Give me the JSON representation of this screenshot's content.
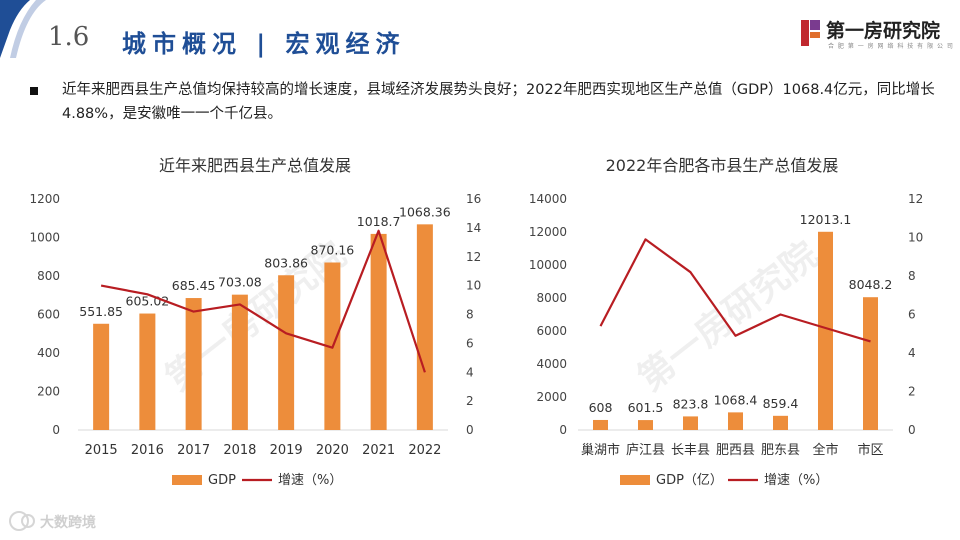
{
  "header": {
    "section_number": "1.6",
    "section_title": "城市概况 | 宏观经济",
    "brand_name": "第一房研究院",
    "brand_sub": "合 肥 第 一 房 网 络 科 技 有 限 公 司"
  },
  "intro": {
    "text": "近年来肥西县生产总值均保持较高的增长速度，县域经济发展势头良好；2022年肥西实现地区生产总值（GDP）1068.4亿元，同比增长4.88%，是安徽唯一一个千亿县。"
  },
  "watermark": {
    "chart_text": "第一房研究院",
    "bottom_text": "大数跨境"
  },
  "colors": {
    "bar": "#ED8D3B",
    "line": "#B81D22",
    "title_blue": "#1f4e96"
  },
  "chart_data": [
    {
      "type": "bar",
      "title": "近年来肥西县生产总值发展",
      "categories": [
        "2015",
        "2016",
        "2017",
        "2018",
        "2019",
        "2020",
        "2021",
        "2022"
      ],
      "series": [
        {
          "name": "GDP",
          "values": [
            551.85,
            605.02,
            685.45,
            703.08,
            803.86,
            870.16,
            1018.7,
            1068.36
          ]
        },
        {
          "name": "增速（%）",
          "type": "line",
          "axis": "right",
          "values": [
            10,
            9.4,
            8.2,
            8.7,
            6.7,
            5.7,
            13.8,
            4.0
          ]
        }
      ],
      "data_labels": [
        "551.85",
        "605.02",
        "685.45",
        "703.08",
        "803.86",
        "870.16",
        "1018.7",
        "1068.36"
      ],
      "ylim": [
        0,
        1200
      ],
      "yticks": [
        "0",
        "200",
        "400",
        "600",
        "800",
        "1000",
        "1200"
      ],
      "y2lim": [
        0,
        16
      ],
      "y2ticks": [
        "0",
        "2",
        "4",
        "6",
        "8",
        "10",
        "12",
        "14",
        "16"
      ],
      "legend_position": "bottom",
      "legend": [
        "GDP",
        "增速（%）"
      ]
    },
    {
      "type": "bar",
      "title": "2022年合肥各市县生产总值发展",
      "categories": [
        "巢湖市",
        "庐江县",
        "长丰县",
        "肥西县",
        "肥东县",
        "全市",
        "市区"
      ],
      "series": [
        {
          "name": "GDP（亿）",
          "values": [
            608,
            601.5,
            823.8,
            1068.4,
            859.4,
            12013.1,
            8048.2
          ]
        },
        {
          "name": "增速（%）",
          "type": "line",
          "axis": "right",
          "values": [
            5.4,
            9.9,
            8.2,
            4.9,
            6.0,
            5.3,
            4.6
          ]
        }
      ],
      "data_labels": [
        "608",
        "601.5",
        "823.8",
        "1068.4",
        "859.4",
        "12013.1",
        "8048.2"
      ],
      "ylim": [
        0,
        14000
      ],
      "yticks": [
        "0",
        "2000",
        "4000",
        "6000",
        "8000",
        "10000",
        "12000",
        "14000"
      ],
      "y2lim": [
        0,
        12
      ],
      "y2ticks": [
        "0",
        "2",
        "4",
        "6",
        "8",
        "10",
        "12"
      ],
      "legend_position": "bottom",
      "legend": [
        "GDP（亿）",
        "增速（%）"
      ]
    }
  ]
}
